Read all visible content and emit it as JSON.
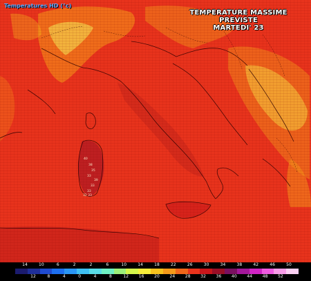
{
  "map": {
    "layer_title": "Temperatures HD (°c)",
    "headline_line1": "TEMPERATURE MASSIME PREVISTE",
    "headline_line2": "MARTEDI' 23",
    "region": "Italy",
    "field_colors": {
      "base": "#e8331c",
      "hot": "#c8261a",
      "warm": "#f5821f",
      "mild": "#f7c21e",
      "cool": "#f6ed5a",
      "border": "#2a0000"
    },
    "sardinia_values": [
      "40",
      "38",
      "35",
      "33",
      "39",
      "33",
      "33",
      "32 33"
    ]
  },
  "legend": {
    "top_labels": [
      "14",
      "10",
      "6",
      "2",
      "2",
      "6",
      "10",
      "14",
      "18",
      "22",
      "26",
      "30",
      "34",
      "38",
      "42",
      "46",
      "50"
    ],
    "bottom_labels": [
      "12",
      "8",
      "4",
      "0",
      "4",
      "8",
      "12",
      "16",
      "20",
      "24",
      "28",
      "32",
      "36",
      "40",
      "44",
      "48",
      "52"
    ],
    "colors": [
      "#1b1b6e",
      "#1f2f9a",
      "#1f4bd0",
      "#1d6ff0",
      "#2a96f5",
      "#3fc0f2",
      "#59dde8",
      "#6ef1c4",
      "#9cf07a",
      "#d4f54a",
      "#f6ed3a",
      "#f7c21e",
      "#f59a1a",
      "#f0661a",
      "#e8331c",
      "#c8161b",
      "#9a0e26",
      "#7a1060",
      "#a3189a",
      "#d024c4",
      "#ee5ae0",
      "#f79ce8",
      "#fbd0f2"
    ]
  }
}
